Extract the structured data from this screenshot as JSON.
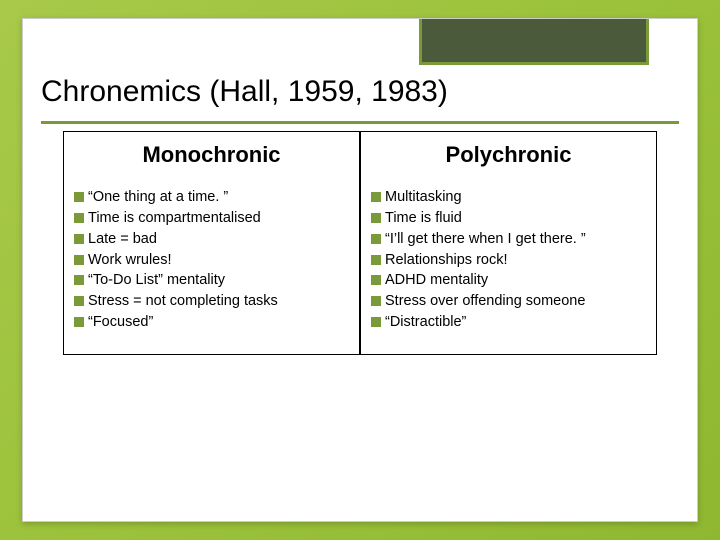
{
  "title": "Chronemics (Hall, 1959, 1983)",
  "columns": {
    "left": {
      "header": "Monochronic",
      "items": [
        "“One thing at a time. ”",
        "Time is compartmentalised",
        "Late = bad",
        "Work wrules!",
        "“To-Do List” mentality",
        "Stress = not completing tasks",
        "“Focused”"
      ]
    },
    "right": {
      "header": "Polychronic",
      "items": [
        "Multitasking",
        "Time is fluid",
        "“I’ll get there when I get there. ”",
        "Relationships rock!",
        "ADHD mentality",
        "Stress over offending someone",
        "“Distractible”"
      ]
    }
  },
  "colors": {
    "accent": "#7a9a3a",
    "header_box": "#4a5a3a",
    "background_gradient": [
      "#a8c94a",
      "#9bc23a",
      "#8fb830"
    ],
    "text": "#000000",
    "slide_bg": "#ffffff"
  },
  "typography": {
    "title_fontsize": 30,
    "header_fontsize": 22,
    "item_fontsize": 14.5,
    "font_family": "Arial"
  },
  "layout": {
    "slide_width": 720,
    "slide_height": 540
  }
}
